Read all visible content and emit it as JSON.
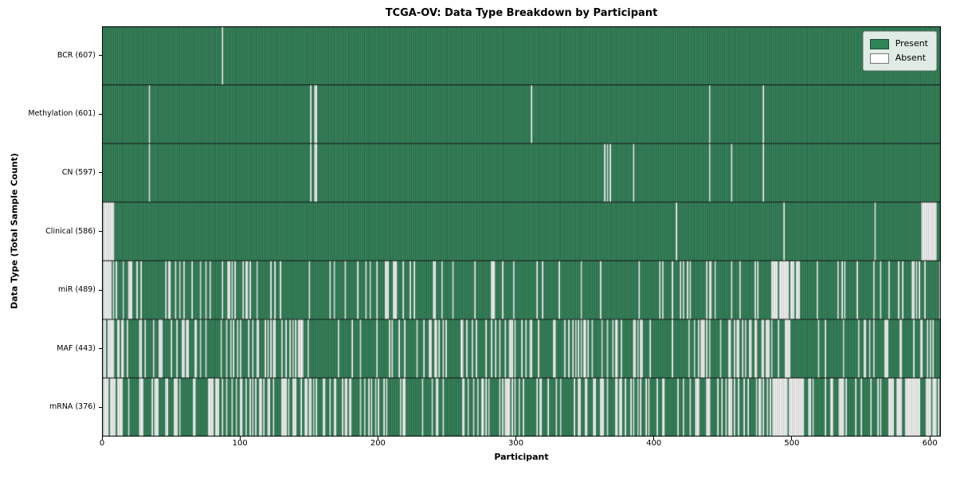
{
  "chart_data": {
    "type": "heatmap",
    "title": "TCGA-OV: Data Type Breakdown by Participant",
    "xlabel": "Participant",
    "ylabel": "Data Type (Total Sample Count)",
    "x_range": [
      0,
      608
    ],
    "x_ticks": [
      0,
      100,
      200,
      300,
      400,
      500,
      600
    ],
    "total_participants": 608,
    "grid": false,
    "legend_position": "upper right",
    "legend_labels": {
      "present": "Present",
      "absent": "Absent"
    },
    "colors": {
      "present": "#2e8457",
      "present_edge": "#1b4d33",
      "absent": "#ffffff",
      "absent_edge": "#a3a3a3",
      "frame": "#000000",
      "row_separator": "#111111"
    },
    "rows": [
      {
        "label": "BCR (607)",
        "data_type": "BCR",
        "present_count": 607,
        "absent_indices": [
          87
        ]
      },
      {
        "label": "Methylation (601)",
        "data_type": "Methylation",
        "present_count": 601,
        "absent_indices": [
          34,
          151,
          154,
          155,
          311,
          440,
          479
        ]
      },
      {
        "label": "CN (597)",
        "data_type": "CN",
        "present_count": 597,
        "absent_indices": [
          34,
          151,
          154,
          155,
          364,
          366,
          368,
          385,
          440,
          456,
          479
        ]
      },
      {
        "label": "Clinical (586)",
        "data_type": "Clinical",
        "present_count": 586,
        "absent_indices": [
          1,
          2,
          3,
          4,
          5,
          6,
          7,
          8,
          416,
          494,
          560,
          594,
          595,
          596,
          597,
          598,
          599,
          600,
          601,
          602,
          603,
          604
        ]
      },
      {
        "label": "miR (489)",
        "data_type": "miR",
        "present_count": 489,
        "absent_segments": [
          {
            "from": 1,
            "to": 8,
            "absent": 7
          },
          {
            "from": 9,
            "to": 130,
            "absent": 30
          },
          {
            "from": 131,
            "to": 190,
            "absent": 5
          },
          {
            "from": 191,
            "to": 228,
            "absent": 12
          },
          {
            "from": 229,
            "to": 310,
            "absent": 10
          },
          {
            "from": 311,
            "to": 420,
            "absent": 10
          },
          {
            "from": 421,
            "to": 485,
            "absent": 12
          },
          {
            "from": 486,
            "to": 505,
            "absent": 17
          },
          {
            "from": 506,
            "to": 607,
            "absent": 16
          }
        ]
      },
      {
        "label": "MAF (443)",
        "data_type": "MAF",
        "present_count": 443,
        "absent_segments": [
          {
            "from": 1,
            "to": 8,
            "absent": 7
          },
          {
            "from": 9,
            "to": 130,
            "absent": 38
          },
          {
            "from": 131,
            "to": 190,
            "absent": 12
          },
          {
            "from": 191,
            "to": 260,
            "absent": 15
          },
          {
            "from": 261,
            "to": 340,
            "absent": 22
          },
          {
            "from": 341,
            "to": 390,
            "absent": 18
          },
          {
            "from": 391,
            "to": 450,
            "absent": 12
          },
          {
            "from": 451,
            "to": 490,
            "absent": 18
          },
          {
            "from": 491,
            "to": 560,
            "absent": 12
          },
          {
            "from": 561,
            "to": 607,
            "absent": 11
          }
        ]
      },
      {
        "label": "mRNA (376)",
        "data_type": "mRNA",
        "present_count": 376,
        "absent_segments": [
          {
            "from": 1,
            "to": 8,
            "absent": 7
          },
          {
            "from": 9,
            "to": 130,
            "absent": 45
          },
          {
            "from": 131,
            "to": 230,
            "absent": 35
          },
          {
            "from": 231,
            "to": 300,
            "absent": 22
          },
          {
            "from": 301,
            "to": 400,
            "absent": 30
          },
          {
            "from": 401,
            "to": 485,
            "absent": 28
          },
          {
            "from": 486,
            "to": 510,
            "absent": 22
          },
          {
            "from": 511,
            "to": 575,
            "absent": 20
          },
          {
            "from": 576,
            "to": 607,
            "absent": 23
          }
        ]
      }
    ]
  }
}
